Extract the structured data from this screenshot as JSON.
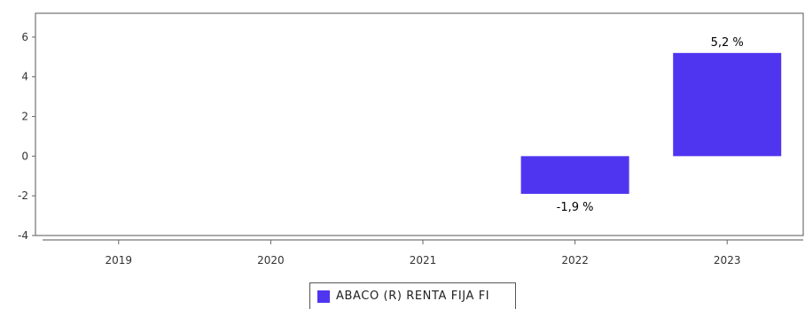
{
  "chart_data": {
    "type": "bar",
    "categories": [
      "2019",
      "2020",
      "2021",
      "2022",
      "2023"
    ],
    "series": [
      {
        "name": "ABACO (R) RENTA FIJA FI",
        "values": [
          null,
          null,
          null,
          -1.9,
          5.2
        ],
        "data_labels": [
          "",
          "",
          "",
          "-1,9 %",
          "5,2 %"
        ]
      }
    ],
    "ylim": [
      -4,
      7.2
    ],
    "yticks": [
      -4,
      -2,
      0,
      2,
      4,
      6
    ],
    "ytick_labels": [
      "-4",
      "-2",
      "0",
      "2",
      "4",
      "6"
    ],
    "grid": false,
    "legend_position": "bottom-center",
    "colors": {
      "series": "#4F35F0",
      "axis": "#555555",
      "tick": "#666666"
    }
  }
}
